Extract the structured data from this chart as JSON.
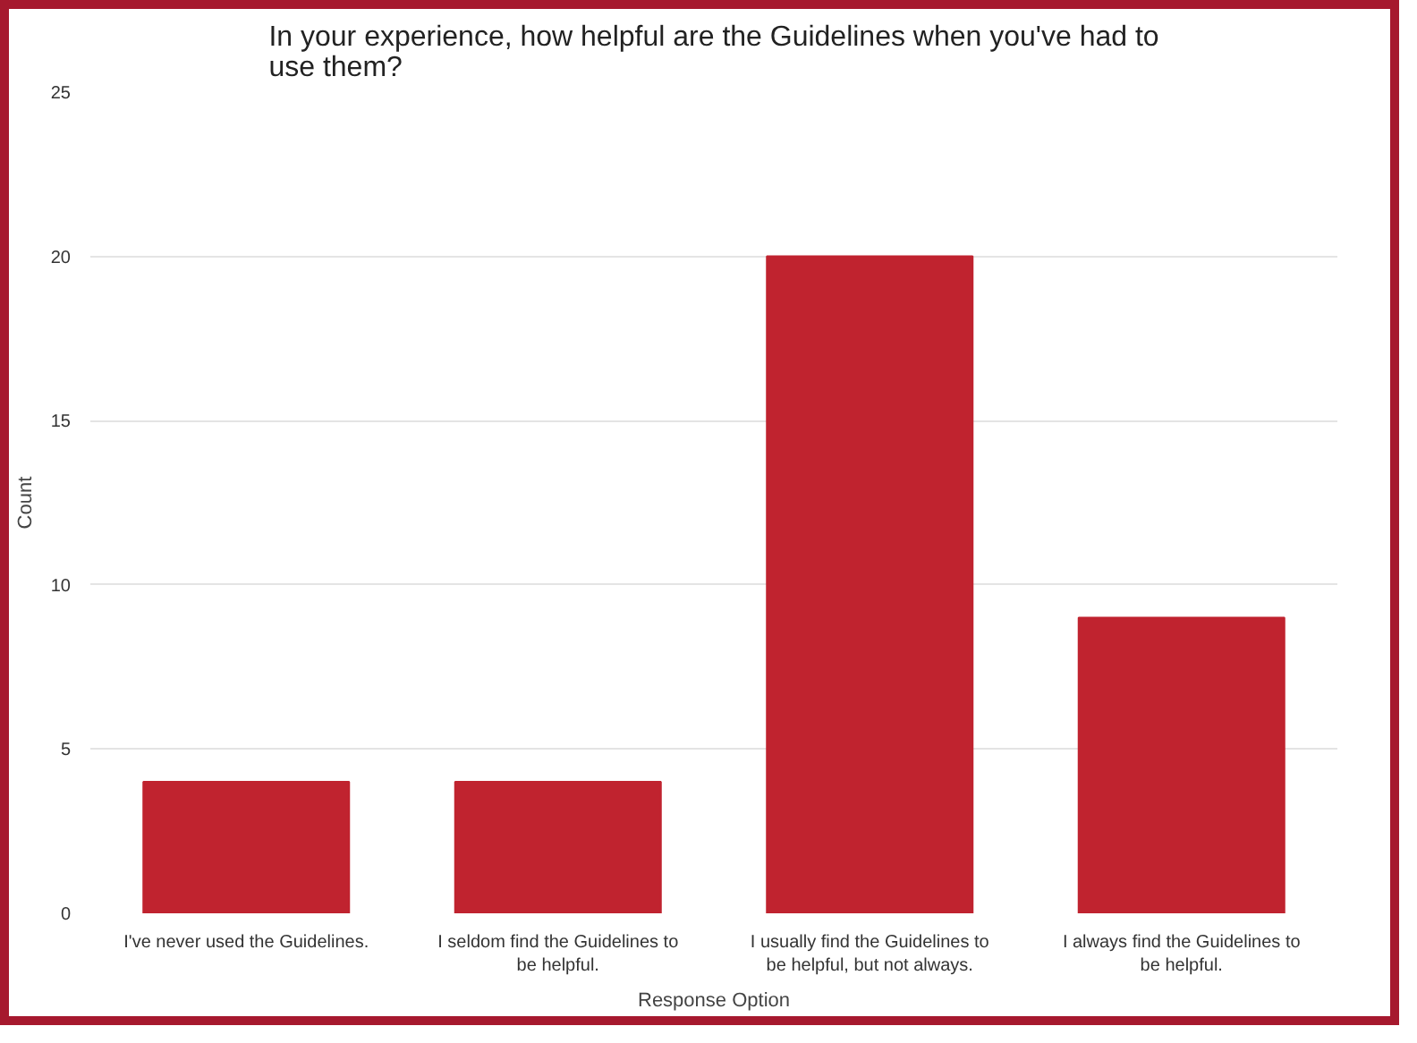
{
  "chart_data": {
    "type": "bar",
    "title": "In your experience, how helpful are the Guidelines when you've had to use them?",
    "xlabel": "Response Option",
    "ylabel": "Count",
    "categories": [
      "I've never used the Guidelines.",
      "I seldom find the Guidelines to be helpful.",
      "I usually find the Guidelines to be helpful, but not always.",
      "I always find the Guidelines to be helpful."
    ],
    "values": [
      4,
      4,
      20,
      9
    ],
    "color": "#c0232f",
    "ylim": [
      0,
      25
    ],
    "yticks": [
      0,
      5,
      10,
      15,
      20,
      25
    ],
    "grid": "y"
  }
}
